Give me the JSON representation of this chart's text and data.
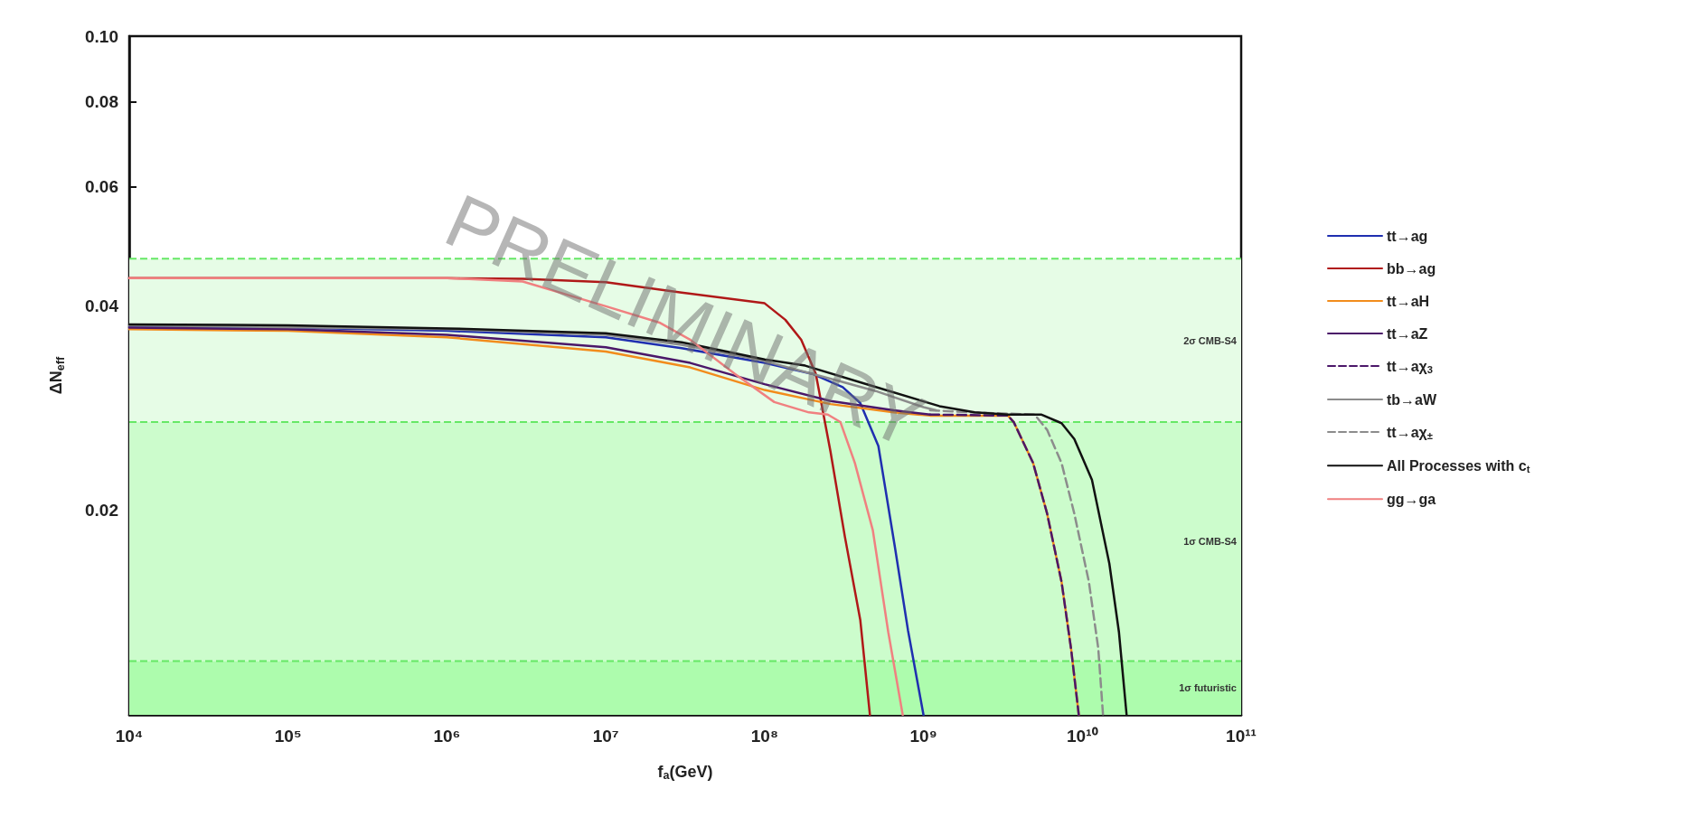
{
  "chart_data": {
    "type": "line",
    "xlabel": "f$_{a}$(GeV)",
    "ylabel": "ΔN$_{eff}$",
    "log": "xy",
    "grid": false,
    "legend": "right",
    "marker": "none",
    "xlim": [
      10000.0,
      100000000000.0
    ],
    "xticks": [
      {
        "value": 10000.0,
        "label": "10⁴"
      },
      {
        "value": 100000.0,
        "label": "10⁵"
      },
      {
        "value": 1000000.0,
        "label": "10⁶"
      },
      {
        "value": 10000000.0,
        "label": "10⁷"
      },
      {
        "value": 100000000.0,
        "label": "10⁸"
      },
      {
        "value": 1000000000.0,
        "label": "10⁹"
      },
      {
        "value": 10000000000.0,
        "label": "10¹⁰"
      },
      {
        "value": 100000000000.0,
        "label": "10¹¹"
      }
    ],
    "ylim": [
      0.01,
      0.1
    ],
    "yticks": [
      0.02,
      0.04,
      0.06,
      0.08,
      {
        "value": 0.1,
        "label": "0.10"
      }
    ],
    "bands": [
      {
        "axis": "y",
        "from": 0.027,
        "to": 0.047,
        "label": "2σ CMB-S4",
        "color": "#e6fce6"
      },
      {
        "axis": "y",
        "from": 0.012,
        "to": 0.027,
        "label": "1σ CMB-S4",
        "color": "#ccfccc"
      },
      {
        "axis": "y",
        "from": 0.01,
        "to": 0.012,
        "label": "1σ futuristic",
        "color": "#adfcad"
      }
    ],
    "ref_lines": [
      {
        "axis": "y",
        "value": 0.047,
        "color": "#66e866",
        "line_style": "dashed"
      },
      {
        "axis": "y",
        "value": 0.027,
        "color": "#66e866",
        "line_style": "dashed"
      },
      {
        "axis": "y",
        "value": 0.012,
        "color": "#66e866",
        "line_style": "dashed"
      }
    ],
    "annotations": [
      "PRELIMINARY"
    ],
    "series": [
      {
        "name": "tt→ag",
        "color": "#1f2fb0",
        "line_style": "solid",
        "x": [
          10000.0,
          100000.0,
          1000000.0,
          10000000.0,
          30000000.0,
          100000000.0,
          200000000.0,
          310000000.0,
          400000000.0,
          520000000.0,
          660000000.0,
          800000000.0,
          1000000000.0
        ],
        "values": [
          0.0373,
          0.0372,
          0.0368,
          0.036,
          0.0347,
          0.033,
          0.0318,
          0.0304,
          0.0288,
          0.0249,
          0.0177,
          0.0133,
          0.01
        ]
      },
      {
        "name": "bb→ag",
        "color": "#b01818",
        "line_style": "solid",
        "x": [
          10000.0,
          1000000.0,
          3000000.0,
          10000000.0,
          30000000.0,
          100000000.0,
          135000000.0,
          170000000.0,
          210000000.0,
          260000000.0,
          320000000.0,
          400000000.0,
          460000000.0
        ],
        "values": [
          0.044,
          0.044,
          0.0439,
          0.0434,
          0.0419,
          0.0404,
          0.0382,
          0.0357,
          0.0318,
          0.0244,
          0.0183,
          0.0138,
          0.01
        ]
      },
      {
        "name": "tt→aH",
        "color": "#f28c1c",
        "line_style": "solid",
        "x": [
          10000.0,
          100000.0,
          1000000.0,
          10000000.0,
          34000000.0,
          100000000.0,
          260000000.0,
          650000000.0,
          1100000000.0,
          3400000000.0,
          3700000000.0,
          4900000000.0,
          6000000000.0,
          7400000000.0,
          8500000000.0,
          9500000000.0
        ],
        "values": [
          0.037,
          0.0368,
          0.036,
          0.0343,
          0.0325,
          0.0301,
          0.0287,
          0.0279,
          0.0276,
          0.0276,
          0.027,
          0.0235,
          0.0198,
          0.0157,
          0.0125,
          0.01
        ]
      },
      {
        "name": "tt→aZ",
        "color": "#4b1769",
        "line_style": "solid",
        "x": [
          10000.0,
          100000.0,
          1000000.0,
          10000000.0,
          34000000.0,
          100000000.0,
          260000000.0,
          650000000.0,
          1100000000.0
        ],
        "values": [
          0.0372,
          0.037,
          0.0363,
          0.0348,
          0.033,
          0.0307,
          0.029,
          0.0281,
          0.0277
        ]
      },
      {
        "name": "tt→aχ$_{3}$",
        "color": "#4b1769",
        "line_style": "dashed",
        "x": [
          1100000000.0,
          3400000000.0,
          3700000000.0,
          4900000000.0,
          6000000000.0,
          7400000000.0,
          8500000000.0,
          9500000000.0
        ],
        "values": [
          0.0277,
          0.0276,
          0.027,
          0.0235,
          0.0198,
          0.0157,
          0.0125,
          0.01
        ]
      },
      {
        "name": "tb→aW",
        "color": "#8c8c8c",
        "line_style": "solid",
        "x": [
          10000.0,
          1000000.0,
          10000000.0,
          30000000.0,
          100000000.0,
          300000000.0,
          500000000.0,
          1000000000.0,
          1200000000.0
        ],
        "values": [
          0.0375,
          0.037,
          0.0363,
          0.0351,
          0.0332,
          0.031,
          0.03,
          0.0284,
          0.0281
        ]
      },
      {
        "name": "tt→aχ$_{±}$",
        "color": "#8c8c8c",
        "line_style": "dashed",
        "x": [
          1100000000.0,
          2000000000.0,
          5000000000.0,
          6000000000.0,
          7400000000.0,
          8900000000.0,
          11000000000.0,
          12600000000.0,
          13500000000.0
        ],
        "values": [
          0.0281,
          0.0279,
          0.0277,
          0.0263,
          0.0235,
          0.0198,
          0.0157,
          0.01253,
          0.01
        ]
      },
      {
        "name": "All Processes with c$_{t}$",
        "color": "#111111",
        "line_style": "solid",
        "x": [
          10000.0,
          100000.0,
          1000000.0,
          10000000.0,
          30000000.0,
          100000000.0,
          180000000.0,
          480000000.0,
          1260000000.0,
          2100000000.0,
          3400000000.0,
          5500000000.0,
          7400000000.0,
          8900000000.0,
          11500000000.0,
          14800000000.0,
          17000000000.0,
          19000000000.0
        ],
        "values": [
          0.0376,
          0.0375,
          0.0371,
          0.0365,
          0.0354,
          0.0334,
          0.0327,
          0.0305,
          0.0285,
          0.0279,
          0.0277,
          0.0277,
          0.0269,
          0.0255,
          0.0222,
          0.0167,
          0.01325,
          0.01
        ]
      },
      {
        "name": "gg→ga",
        "color": "#f08080",
        "line_style": "solid",
        "x": [
          10000.0,
          1000000.0,
          3000000.0,
          10000000.0,
          22000000.0,
          34000000.0,
          65000000.0,
          115000000.0,
          190000000.0,
          250000000.0,
          300000000.0,
          370000000.0,
          480000000.0,
          600000000.0,
          740000000.0
        ],
        "values": [
          0.044,
          0.044,
          0.0435,
          0.04,
          0.0378,
          0.0357,
          0.0318,
          0.0289,
          0.0279,
          0.0277,
          0.027,
          0.0235,
          0.0187,
          0.01325,
          0.01
        ]
      }
    ]
  }
}
